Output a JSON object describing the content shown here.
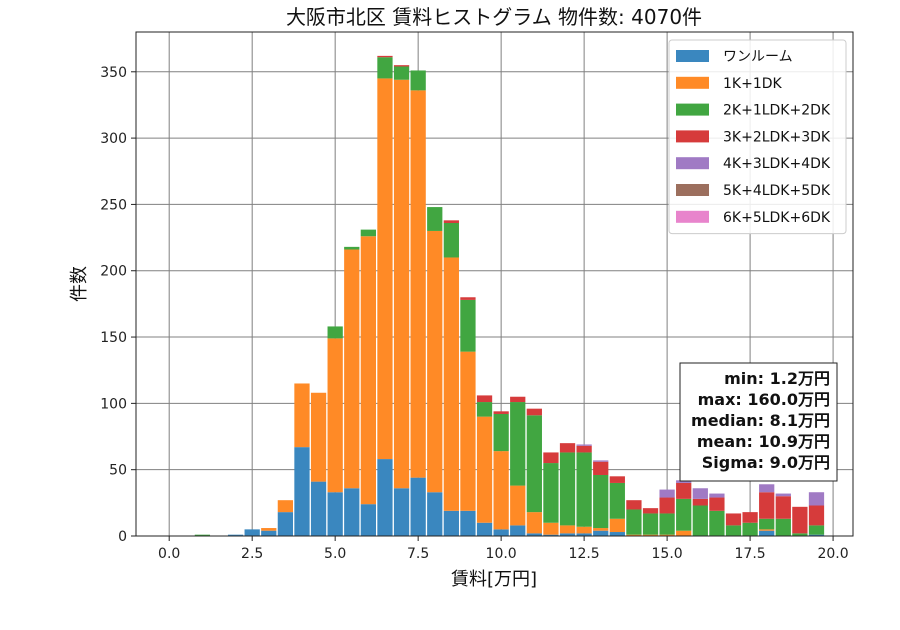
{
  "chart_data": {
    "type": "bar",
    "stacked": true,
    "title": "大阪市北区 賃料ヒストグラム 物件数: 4070件",
    "xlabel": "賃料[万円]",
    "ylabel": "件数",
    "xlim": [
      -1.0,
      20.6
    ],
    "ylim": [
      0,
      380
    ],
    "xticks": [
      0.0,
      2.5,
      5.0,
      7.5,
      10.0,
      12.5,
      15.0,
      17.5,
      20.0
    ],
    "xtick_labels": [
      "0.0",
      "2.5",
      "5.0",
      "7.5",
      "10.0",
      "12.5",
      "15.0",
      "17.5",
      "20.0"
    ],
    "yticks": [
      0,
      50,
      100,
      150,
      200,
      250,
      300,
      350
    ],
    "grid": true,
    "legend_position": "top-right",
    "bin_width": 0.5,
    "x": [
      1.0,
      1.5,
      2.0,
      2.5,
      3.0,
      3.5,
      4.0,
      4.5,
      5.0,
      5.5,
      6.0,
      6.5,
      7.0,
      7.5,
      8.0,
      8.5,
      9.0,
      9.5,
      10.0,
      10.5,
      11.0,
      11.5,
      12.0,
      12.5,
      13.0,
      13.5,
      14.0,
      14.5,
      15.0,
      15.5,
      16.0,
      16.5,
      17.0,
      17.5,
      18.0,
      18.5,
      19.0,
      19.5
    ],
    "series": [
      {
        "name": "ワンルーム",
        "color": "#3a87bf",
        "values": [
          0,
          0,
          1,
          5,
          4,
          18,
          67,
          41,
          33,
          36,
          24,
          58,
          36,
          44,
          33,
          19,
          19,
          10,
          5,
          8,
          2,
          1,
          2,
          2,
          4,
          3,
          0,
          0,
          0,
          0,
          0,
          0,
          0,
          0,
          4,
          0,
          0,
          1
        ]
      },
      {
        "name": "1K+1DK",
        "color": "#ff8a26",
        "values": [
          0,
          0,
          0,
          0,
          2,
          9,
          48,
          67,
          116,
          180,
          202,
          287,
          308,
          292,
          197,
          191,
          120,
          80,
          59,
          30,
          16,
          9,
          6,
          5,
          2,
          10,
          1,
          1,
          1,
          4,
          0,
          0,
          0,
          0,
          1,
          0,
          0,
          0
        ]
      },
      {
        "name": "2K+1LDK+2DK",
        "color": "#41a641",
        "values": [
          1,
          0,
          0,
          0,
          0,
          0,
          0,
          0,
          9,
          2,
          5,
          16,
          10,
          15,
          18,
          26,
          39,
          11,
          28,
          63,
          73,
          45,
          55,
          56,
          40,
          27,
          19,
          16,
          16,
          24,
          23,
          19,
          8,
          10,
          8,
          13,
          2,
          7
        ]
      },
      {
        "name": "3K+2LDK+3DK",
        "color": "#d63b3b",
        "values": [
          0,
          0,
          0,
          0,
          0,
          0,
          0,
          0,
          0,
          0,
          0,
          1,
          1,
          0,
          0,
          2,
          2,
          5,
          2,
          4,
          5,
          8,
          7,
          5,
          10,
          5,
          7,
          4,
          12,
          12,
          5,
          10,
          9,
          8,
          20,
          17,
          20,
          15
        ]
      },
      {
        "name": "4K+3LDK+4DK",
        "color": "#a07ac4",
        "values": [
          0,
          0,
          0,
          0,
          0,
          0,
          0,
          0,
          0,
          0,
          0,
          0,
          0,
          0,
          0,
          0,
          0,
          0,
          0,
          0,
          0,
          0,
          0,
          1,
          1,
          0,
          0,
          0,
          6,
          2,
          8,
          3,
          0,
          0,
          6,
          2,
          0,
          10
        ]
      },
      {
        "name": "5K+4LDK+5DK",
        "color": "#9c6f5e",
        "values": [
          0,
          0,
          0,
          0,
          0,
          0,
          0,
          0,
          0,
          0,
          0,
          0,
          0,
          0,
          0,
          0,
          0,
          0,
          0,
          0,
          0,
          0,
          0,
          0,
          0,
          0,
          0,
          0,
          0,
          0,
          0,
          0,
          0,
          0,
          0,
          0,
          0,
          0
        ]
      },
      {
        "name": "6K+5LDK+6DK",
        "color": "#e884cc",
        "values": [
          0,
          0,
          0,
          0,
          0,
          0,
          0,
          0,
          0,
          0,
          0,
          0,
          0,
          0,
          0,
          0,
          0,
          0,
          0,
          0,
          0,
          0,
          0,
          0,
          0,
          0,
          0,
          0,
          0,
          0,
          0,
          0,
          0,
          0,
          0,
          0,
          0,
          0
        ]
      }
    ],
    "annotations": [
      "min: 1.2万円",
      "max: 160.0万円",
      "median: 8.1万円",
      "mean: 10.9万円",
      "Sigma: 9.0万円"
    ]
  }
}
